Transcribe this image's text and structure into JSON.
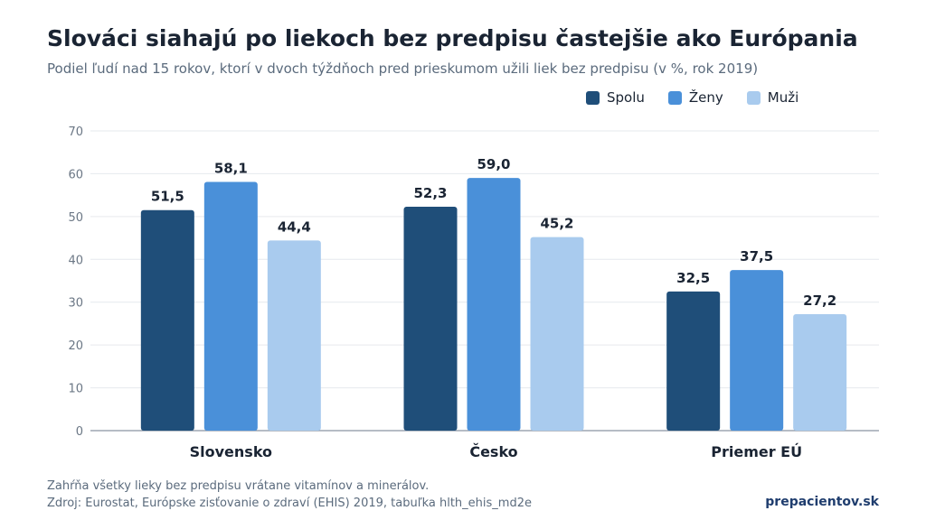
{
  "title": "Slováci siahajú po liekoch bez predpisu častejšie ako Európania",
  "subtitle": "Podiel ľudí nad 15 rokov, ktorí v dvoch týždňoch pred prieskumom užili liek bez predpisu (v %, rok 2019)",
  "footer": {
    "note": "Zahŕňa všetky lieky bez predpisu vrátane vitamínov a minerálov.",
    "source": "Zdroj: Eurostat, Európske zisťovanie o zdraví (EHIS) 2019, tabuľka hlth_ehis_md2e",
    "brand": "prepacientov.sk"
  },
  "chart_data": {
    "type": "bar",
    "categories": [
      "Slovensko",
      "Česko",
      "Priemer EÚ"
    ],
    "series": [
      {
        "name": "Spolu",
        "color": "#1f4e79",
        "values": [
          51.5,
          52.3,
          32.5
        ],
        "labels": [
          "51,5",
          "52,3",
          "32,5"
        ]
      },
      {
        "name": "Ženy",
        "color": "#4a90d9",
        "values": [
          58.1,
          59.0,
          37.5
        ],
        "labels": [
          "58,1",
          "59,0",
          "37,5"
        ]
      },
      {
        "name": "Muži",
        "color": "#a9cbee",
        "values": [
          44.4,
          45.2,
          27.2
        ],
        "labels": [
          "44,4",
          "45,2",
          "27,2"
        ]
      }
    ],
    "ylim": [
      0,
      70
    ],
    "yticks": [
      0,
      10,
      20,
      30,
      40,
      50,
      60,
      70
    ],
    "grid": true,
    "legend_position": "top-right"
  }
}
